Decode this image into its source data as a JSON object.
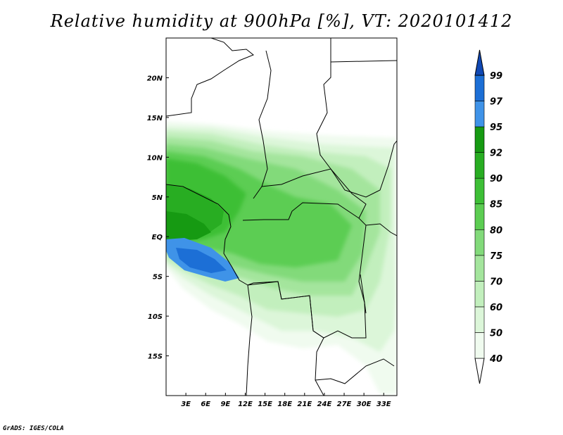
{
  "title": "Relative humidity at 900hPa [%], VT: 2020101412",
  "credit": "GrADS: IGES/COLA",
  "map": {
    "lon_range": [
      0,
      35
    ],
    "lat_range": [
      -20,
      25
    ],
    "lon_ticks": [
      "3E",
      "6E",
      "9E",
      "12E",
      "15E",
      "18E",
      "21E",
      "24E",
      "27E",
      "30E",
      "33E"
    ],
    "lat_ticks": [
      "20N",
      "15N",
      "10N",
      "5N",
      "EQ",
      "5S",
      "10S",
      "15S"
    ]
  },
  "colorbar": {
    "labels": [
      "40",
      "50",
      "60",
      "70",
      "75",
      "80",
      "85",
      "90",
      "92",
      "95",
      "97",
      "99"
    ],
    "colors": [
      "#f0fbef",
      "#dcf6d9",
      "#c2efbd",
      "#a4e59d",
      "#82da7a",
      "#5ccd52",
      "#3dbf36",
      "#28ad22",
      "#169a12",
      "#3f93e8",
      "#1c6fd6",
      "#1048b4"
    ]
  }
}
